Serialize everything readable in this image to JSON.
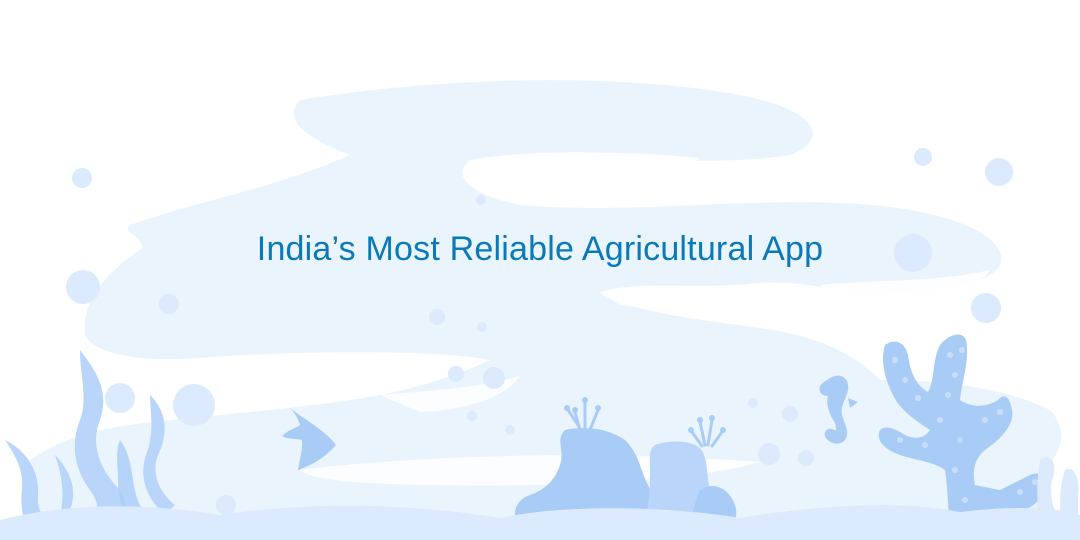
{
  "hero": {
    "headline": "India’s Most Reliable Agricultural App"
  },
  "colors": {
    "accent": "#0a79b9",
    "water_light": "#eaf4fd",
    "water_mid": "#dbeafc",
    "coral": "#a9ccf7",
    "coral_dark": "#8fb9f2"
  },
  "icons": [
    "fish-icon",
    "seahorse-icon",
    "coral-icon",
    "seaweed-icon",
    "bubble-icon"
  ]
}
